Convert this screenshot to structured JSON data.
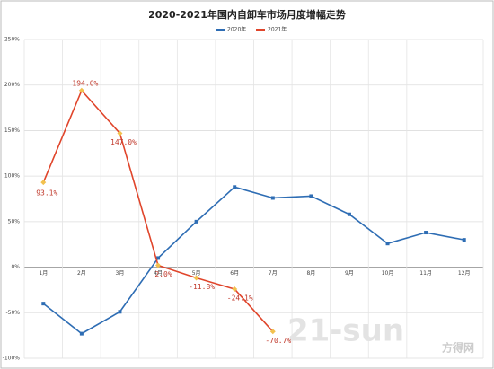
{
  "chart_data": {
    "type": "line",
    "title": "2020-2021年国内自卸车市场月度增幅走势",
    "categories": [
      "1月",
      "2月",
      "3月",
      "4月",
      "5月",
      "6月",
      "7月",
      "8月",
      "9月",
      "10月",
      "11月",
      "12月"
    ],
    "series": [
      {
        "name": "2020年",
        "color": "#2e6db4",
        "values": [
          -40,
          -73,
          -49,
          10,
          50,
          88,
          76,
          78,
          58,
          26,
          38,
          30
        ]
      },
      {
        "name": "2021年",
        "color": "#e0452b",
        "values": [
          93.1,
          194.0,
          147.0,
          2.0,
          -11.8,
          -24.1,
          -70.7,
          null,
          null,
          null,
          null,
          null
        ],
        "value_labels": [
          "93.1%",
          "194.0%",
          "147.0%",
          "2.0%",
          "-11.8%",
          "-24.1%",
          "-70.7%",
          null,
          null,
          null,
          null,
          null
        ]
      }
    ],
    "ylim": [
      -100,
      250
    ],
    "yticks": [
      {
        "value": -100,
        "label": "-100%"
      },
      {
        "value": -50,
        "label": "-50%"
      },
      {
        "value": 0,
        "label": "0%"
      },
      {
        "value": 50,
        "label": "50%"
      },
      {
        "value": 100,
        "label": "100%"
      },
      {
        "value": 150,
        "label": "150%"
      },
      {
        "value": 200,
        "label": "200%"
      },
      {
        "value": 250,
        "label": "250%"
      }
    ],
    "grid": true,
    "watermark": [
      "21-sun",
      "方得网"
    ]
  }
}
